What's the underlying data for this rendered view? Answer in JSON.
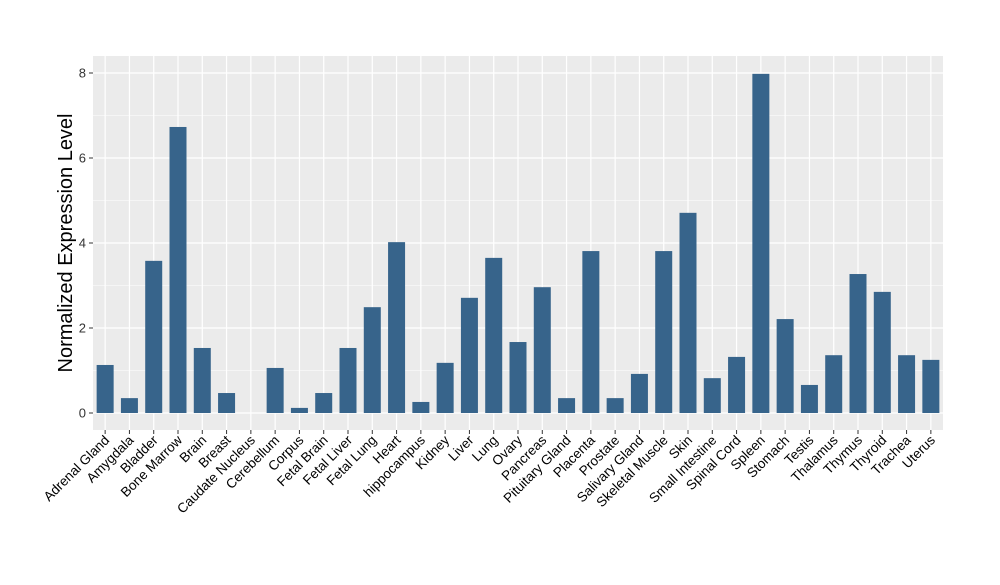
{
  "chart_data": {
    "type": "bar",
    "title": "",
    "xlabel": "",
    "ylabel": "Normalized Expression Level",
    "ylim": [
      -0.4,
      8.4
    ],
    "yticks": [
      0,
      2,
      4,
      6,
      8
    ],
    "grid": true,
    "bar_color": "#37648B",
    "panel_color": "#EBEBEB",
    "categories": [
      "Adrenal Gland",
      "Amygdala",
      "Bladder",
      "Bone Marrow",
      "Brain",
      "Breast",
      "Caudate Nucleus",
      "Cerebellum",
      "Corpus",
      "Fetal Brain",
      "Fetal Liver",
      "Fetal Lung",
      "Heart",
      "hippocampus",
      "Kidney",
      "Liver",
      "Lung",
      "Ovary",
      "Pancreas",
      "Pituitary Gland",
      "Placenta",
      "Prostate",
      "Salivary Gland",
      "Skeletal Muscle",
      "Skin",
      "Small Intestine",
      "Spinal Cord",
      "Spleen",
      "Stomach",
      "Testis",
      "Thalamus",
      "Thymus",
      "Thyroid",
      "Trachea",
      "Uterus"
    ],
    "values": [
      1.13,
      0.35,
      3.58,
      6.73,
      1.53,
      0.47,
      0,
      1.06,
      0.12,
      0.47,
      1.53,
      2.49,
      4.02,
      0.26,
      1.18,
      2.71,
      3.65,
      1.67,
      2.96,
      0.35,
      3.81,
      0.35,
      0.92,
      3.81,
      4.71,
      0.82,
      1.32,
      7.98,
      2.21,
      0.66,
      1.36,
      3.27,
      2.85,
      1.36,
      1.25
    ]
  }
}
